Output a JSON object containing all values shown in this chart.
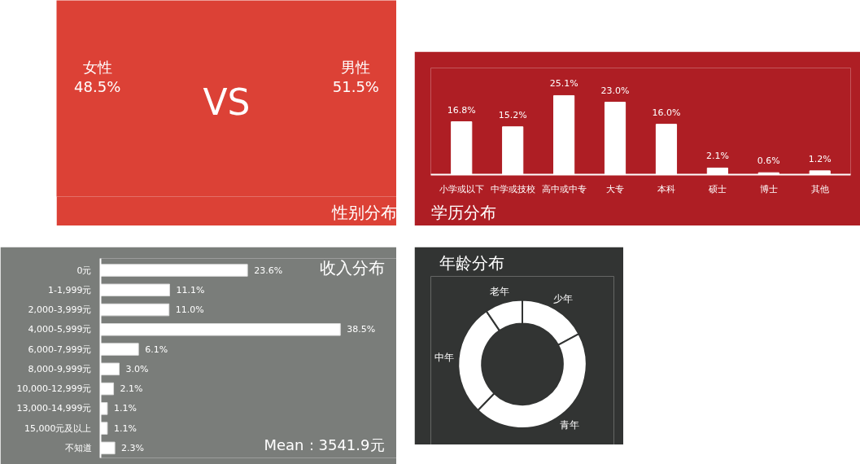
{
  "chart_data": [
    {
      "type": "other",
      "title": "性别分布",
      "annotations": [
        "女性",
        "48.5%",
        "男性",
        "51.5%",
        "VS"
      ]
    },
    {
      "type": "bar",
      "title": "学历分布",
      "categories": [
        "小学或以下",
        "中学或技校",
        "高中或中专",
        "大专",
        "本科",
        "硕士",
        "博士",
        "其他"
      ],
      "values": [
        16.8,
        15.2,
        25.1,
        23.0,
        16.0,
        2.1,
        0.6,
        1.2
      ],
      "value_labels": [
        "16.8%",
        "15.2%",
        "25.1%",
        "23.0%",
        "16.0%",
        "2.1%",
        "0.6%",
        "1.2%"
      ],
      "color": "#ffffff",
      "grid": false
    },
    {
      "type": "bar",
      "orientation": "horizontal",
      "title": "收入分布",
      "categories": [
        "0元",
        "1-1,999元",
        "2,000-3,999元",
        "4,000-5,999元",
        "6,000-7,999元",
        "8,000-9,999元",
        "10,000-12,999元",
        "13,000-14,999元",
        "15,000元及以上",
        "不知道"
      ],
      "values": [
        23.6,
        11.1,
        11.0,
        38.5,
        6.1,
        3.0,
        2.1,
        1.1,
        1.1,
        2.3
      ],
      "value_labels": [
        "23.6%",
        "11.1%",
        "11.0%",
        "38.5%",
        "6.1%",
        "3.0%",
        "2.1%",
        "1.1%",
        "1.1%",
        "2.3%"
      ],
      "color": "#ffffff",
      "annotations": [
        "Mean：3541.9元"
      ],
      "grid": false
    },
    {
      "type": "donut",
      "title": "年龄分布",
      "categories": [
        "少年",
        "青年",
        "中年",
        "老年"
      ],
      "values": [
        17.2,
        45.0,
        28.3,
        9.5
      ],
      "colors": [
        "#ffffff",
        "#ffffff",
        "#ffffff",
        "#ffffff"
      ]
    }
  ]
}
